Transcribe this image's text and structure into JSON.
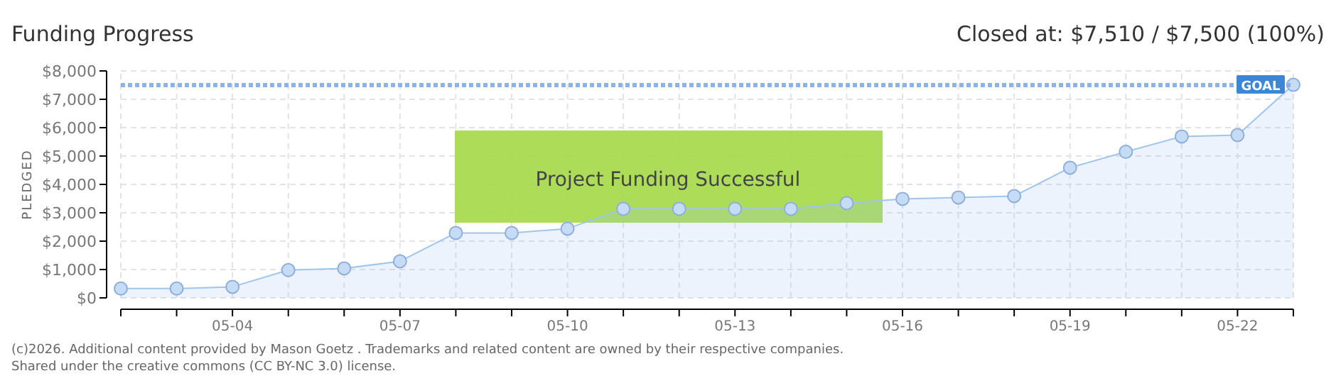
{
  "chart_data": {
    "type": "area",
    "title": "Funding Progress",
    "subtitle": "Closed at:  $7,510 /  $7,500 (100%)",
    "ylabel": "PLEDGED",
    "x": [
      "--05-02",
      "--05-03",
      "--05-04",
      "--05-05",
      "--05-06",
      "--05-07",
      "--05-08",
      "--05-09",
      "--05-10",
      "--05-11",
      "--05-12",
      "--05-13",
      "--05-14",
      "--05-15",
      "--05-16",
      "--05-17",
      "--05-18",
      "--05-19",
      "--05-20",
      "--05-21",
      "--05-22",
      "--05-23"
    ],
    "series": [
      {
        "color": "#9fc5ee",
        "values": [
          330,
          330,
          390,
          980,
          1040,
          1290,
          2290,
          2290,
          2440,
          3140,
          3140,
          3140,
          3140,
          3340,
          3490,
          3540,
          3590,
          4590,
          5150,
          5690,
          5740,
          7510
        ]
      }
    ],
    "xlim": [
      "--05-02",
      "--05-23"
    ],
    "xticks": [
      {
        "value": "--05-02",
        "label": null
      },
      {
        "value": "--05-03",
        "label": null
      },
      {
        "value": "--05-04",
        "label": "05-04"
      },
      {
        "value": "--05-05",
        "label": null
      },
      {
        "value": "--05-06",
        "label": null
      },
      {
        "value": "--05-07",
        "label": "05-07"
      },
      {
        "value": "--05-08",
        "label": null
      },
      {
        "value": "--05-09",
        "label": null
      },
      {
        "value": "--05-10",
        "label": "05-10"
      },
      {
        "value": "--05-11",
        "label": null
      },
      {
        "value": "--05-12",
        "label": null
      },
      {
        "value": "--05-13",
        "label": "05-13"
      },
      {
        "value": "--05-14",
        "label": null
      },
      {
        "value": "--05-15",
        "label": null
      },
      {
        "value": "--05-16",
        "label": "05-16"
      },
      {
        "value": "--05-17",
        "label": null
      },
      {
        "value": "--05-18",
        "label": null
      },
      {
        "value": "--05-19",
        "label": "05-19"
      },
      {
        "value": "--05-20",
        "label": null
      },
      {
        "value": "--05-21",
        "label": null
      },
      {
        "value": "--05-22",
        "label": "05-22"
      },
      {
        "value": "--05-23",
        "label": null
      }
    ],
    "ylim": [
      0,
      8000
    ],
    "yticks": [
      {
        "value": 0,
        "label": "$0"
      },
      {
        "value": 1000,
        "label": "$1,000"
      },
      {
        "value": 2000,
        "label": "$2,000"
      },
      {
        "value": 3000,
        "label": "$3,000"
      },
      {
        "value": 4000,
        "label": "$4,000"
      },
      {
        "value": 5000,
        "label": "$5,000"
      },
      {
        "value": 6000,
        "label": "$6,000"
      },
      {
        "value": 7000,
        "label": "$7,000"
      },
      {
        "value": 8000,
        "label": "$8,000"
      }
    ],
    "ref_lines": [
      {
        "axis": "y",
        "value": 7500,
        "label": "GOAL",
        "color": "#8ab4e8",
        "line_style": "dotted"
      }
    ],
    "grid": true,
    "marker": "circle",
    "annotations": [
      "Project Funding Successful",
      "(c)2026. Additional content provided by Mason Goetz . Trademarks and related content are owned by their respective companies.",
      "Shared under the creative commons (CC BY-NC 3.0) license."
    ]
  }
}
